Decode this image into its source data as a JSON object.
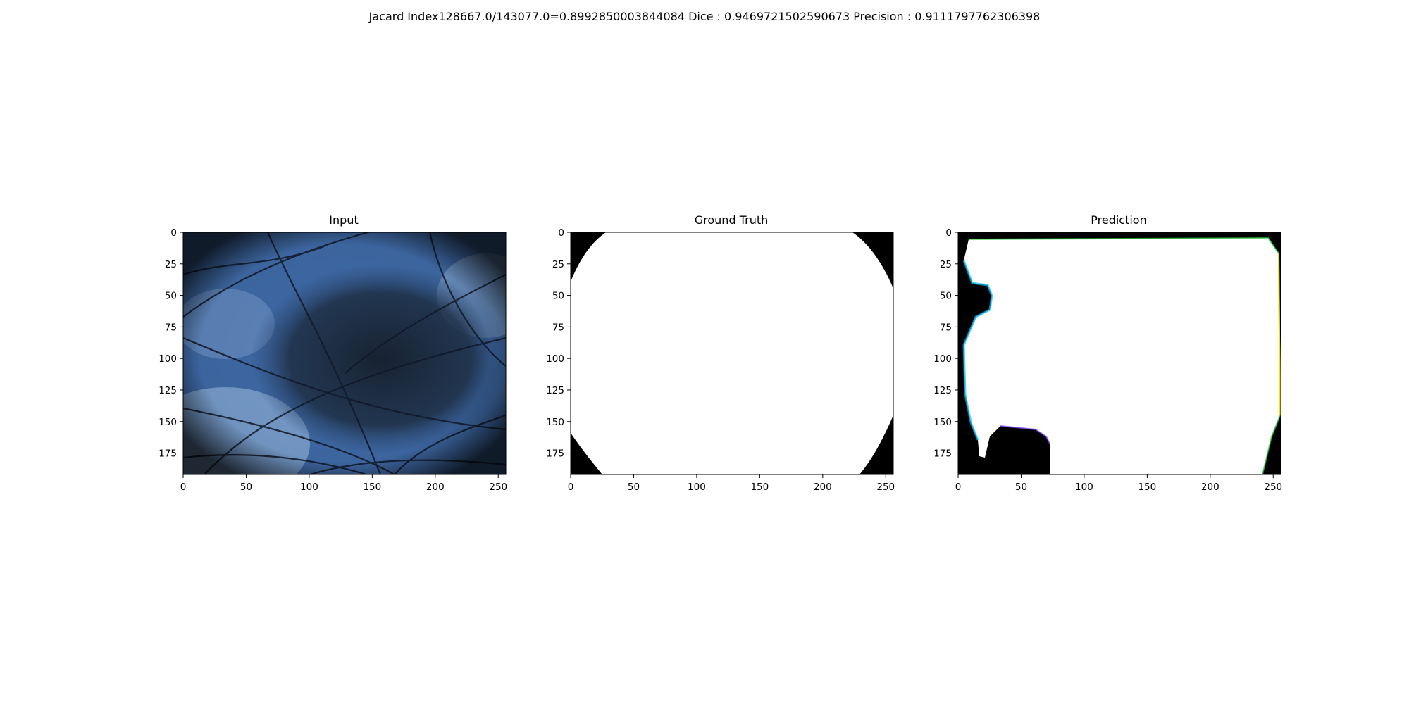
{
  "figure": {
    "suptitle": "Jacard Index128667.0/143077.0=0.8992850003844084 Dice : 0.9469721502590673 Precision : 0.9111797762306398"
  },
  "panels": [
    {
      "key": "input",
      "title": "Input"
    },
    {
      "key": "gt",
      "title": "Ground Truth"
    },
    {
      "key": "pred",
      "title": "Prediction"
    }
  ],
  "axes": {
    "x_ticks": [
      "0",
      "50",
      "100",
      "150",
      "200",
      "250"
    ],
    "y_ticks": [
      "0",
      "25",
      "50",
      "75",
      "100",
      "125",
      "150",
      "175"
    ],
    "x_values": [
      0,
      50,
      100,
      150,
      200,
      250
    ],
    "y_values": [
      0,
      25,
      50,
      75,
      100,
      125,
      150,
      175
    ],
    "x_range": [
      0,
      256
    ],
    "y_range": [
      0,
      192
    ]
  },
  "colors": {
    "skin_light": "#4a78b4",
    "skin_pale": "#8fb0d8",
    "lesion_dark": "#1c2a3a",
    "mask_fg": "#ffffff",
    "mask_bg": "#000000"
  }
}
